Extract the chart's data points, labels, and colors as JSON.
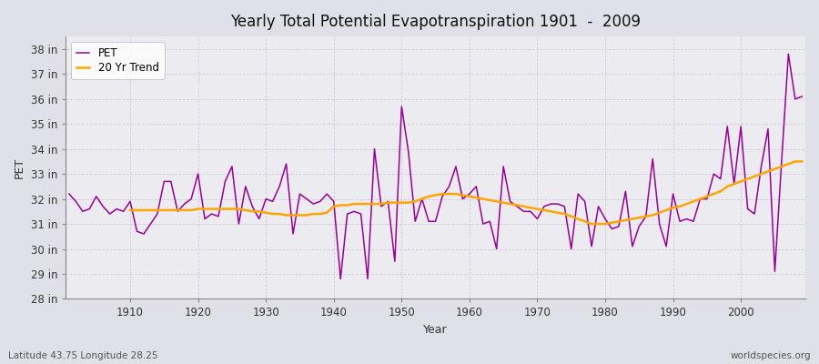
{
  "title": "Yearly Total Potential Evapotranspiration 1901  -  2009",
  "ylabel": "PET",
  "xlabel": "Year",
  "footnote_left": "Latitude 43.75 Longitude 28.25",
  "footnote_right": "worldspecies.org",
  "ylim": [
    28,
    38.5
  ],
  "yticks": [
    28,
    29,
    30,
    31,
    32,
    33,
    34,
    35,
    36,
    37,
    38
  ],
  "ytick_labels": [
    "28 in",
    "29 in",
    "30 in",
    "31 in",
    "32 in",
    "33 in",
    "34 in",
    "35 in",
    "36 in",
    "37 in",
    "38 in"
  ],
  "xlim": [
    1900.5,
    2009.5
  ],
  "pet_color": "#990099",
  "trend_color": "#FFA500",
  "bg_color": "#E0E0E8",
  "plot_bg_color": "#EBEBF0",
  "grid_color": "#CCCCDD",
  "legend_pet": "PET",
  "legend_trend": "20 Yr Trend",
  "years": [
    1901,
    1902,
    1903,
    1904,
    1905,
    1906,
    1907,
    1908,
    1909,
    1910,
    1911,
    1912,
    1913,
    1914,
    1915,
    1916,
    1917,
    1918,
    1919,
    1920,
    1921,
    1922,
    1923,
    1924,
    1925,
    1926,
    1927,
    1928,
    1929,
    1930,
    1931,
    1932,
    1933,
    1934,
    1935,
    1936,
    1937,
    1938,
    1939,
    1940,
    1941,
    1942,
    1943,
    1944,
    1945,
    1946,
    1947,
    1948,
    1949,
    1950,
    1951,
    1952,
    1953,
    1954,
    1955,
    1956,
    1957,
    1958,
    1959,
    1960,
    1961,
    1962,
    1963,
    1964,
    1965,
    1966,
    1967,
    1968,
    1969,
    1970,
    1971,
    1972,
    1973,
    1974,
    1975,
    1976,
    1977,
    1978,
    1979,
    1980,
    1981,
    1982,
    1983,
    1984,
    1985,
    1986,
    1987,
    1988,
    1989,
    1990,
    1991,
    1992,
    1993,
    1994,
    1995,
    1996,
    1997,
    1998,
    1999,
    2000,
    2001,
    2002,
    2003,
    2004,
    2005,
    2006,
    2007,
    2008,
    2009
  ],
  "pet_values": [
    32.2,
    31.9,
    31.5,
    31.6,
    32.1,
    31.7,
    31.4,
    31.6,
    31.5,
    31.9,
    30.7,
    30.6,
    31.0,
    31.4,
    32.7,
    32.7,
    31.5,
    31.8,
    32.0,
    33.0,
    31.2,
    31.4,
    31.3,
    32.7,
    33.3,
    31.0,
    32.5,
    31.7,
    31.2,
    32.0,
    31.9,
    32.5,
    33.4,
    30.6,
    32.2,
    32.0,
    31.8,
    31.9,
    32.2,
    31.9,
    28.8,
    31.4,
    31.5,
    31.4,
    28.8,
    34.0,
    31.7,
    31.9,
    29.5,
    35.7,
    33.9,
    31.1,
    32.0,
    31.1,
    31.1,
    32.1,
    32.5,
    33.3,
    32.0,
    32.2,
    32.5,
    31.0,
    31.1,
    30.0,
    33.3,
    31.9,
    31.7,
    31.5,
    31.5,
    31.2,
    31.7,
    31.8,
    31.8,
    31.7,
    30.0,
    32.2,
    31.9,
    30.1,
    31.7,
    31.2,
    30.8,
    30.9,
    32.3,
    30.1,
    30.9,
    31.3,
    33.6,
    31.0,
    30.1,
    32.2,
    31.1,
    31.2,
    31.1,
    32.0,
    32.0,
    33.0,
    32.8,
    34.9,
    32.6,
    34.9,
    31.6,
    31.4,
    33.3,
    34.8,
    29.1,
    33.5,
    37.8,
    36.0,
    36.1
  ],
  "trend_values_start_year": 1910,
  "trend_values": [
    31.55,
    31.55,
    31.55,
    31.55,
    31.55,
    31.55,
    31.55,
    31.55,
    31.55,
    31.55,
    31.6,
    31.6,
    31.6,
    31.6,
    31.6,
    31.6,
    31.6,
    31.55,
    31.5,
    31.5,
    31.45,
    31.4,
    31.4,
    31.35,
    31.35,
    31.35,
    31.35,
    31.4,
    31.4,
    31.45,
    31.7,
    31.75,
    31.75,
    31.8,
    31.8,
    31.8,
    31.8,
    31.8,
    31.85,
    31.85,
    31.85,
    31.85,
    31.9,
    32.0,
    32.1,
    32.15,
    32.2,
    32.2,
    32.2,
    32.15,
    32.1,
    32.05,
    32.0,
    31.95,
    31.9,
    31.85,
    31.8,
    31.75,
    31.7,
    31.65,
    31.6,
    31.55,
    31.5,
    31.45,
    31.4,
    31.3,
    31.2,
    31.1,
    31.0,
    31.0,
    31.0,
    31.05,
    31.1,
    31.15,
    31.2,
    31.25,
    31.3,
    31.35,
    31.45,
    31.55,
    31.65,
    31.7,
    31.8,
    31.9,
    32.0,
    32.1,
    32.2,
    32.3,
    32.5,
    32.6,
    32.7,
    32.8,
    32.9,
    33.0,
    33.1,
    33.2,
    33.3,
    33.4,
    33.5,
    33.5
  ]
}
